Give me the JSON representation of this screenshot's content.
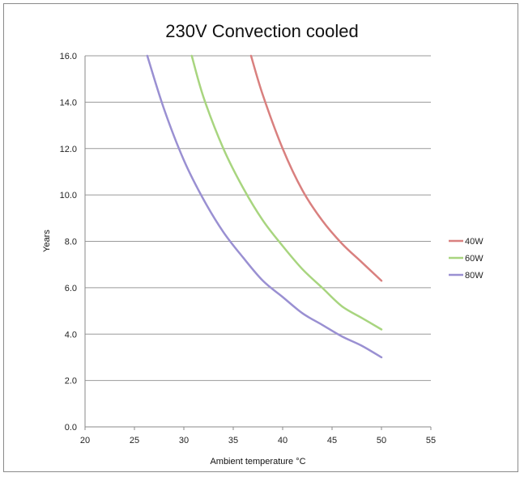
{
  "chart_data": {
    "type": "line",
    "title": "230V Convection cooled",
    "xlabel": "Ambient temperature °C",
    "ylabel": "Years",
    "xlim": [
      20,
      55
    ],
    "ylim": [
      0,
      16
    ],
    "x_ticks": [
      "20",
      "25",
      "30",
      "35",
      "40",
      "45",
      "50",
      "55"
    ],
    "y_ticks": [
      "0.0",
      "2.0",
      "4.0",
      "6.0",
      "8.0",
      "10.0",
      "12.0",
      "14.0",
      "16.0"
    ],
    "grid": "horizontal",
    "legend_position": "right",
    "series": [
      {
        "name": "40W",
        "color": "#d9807f",
        "x": [
          36.8,
          38,
          40,
          42,
          44,
          46,
          48,
          50
        ],
        "y": [
          16.0,
          14.3,
          12.0,
          10.2,
          8.9,
          7.9,
          7.1,
          6.3
        ]
      },
      {
        "name": "60W",
        "color": "#a8d57f",
        "x": [
          30.8,
          32,
          34,
          36,
          38,
          40,
          42,
          44,
          46,
          48,
          50
        ],
        "y": [
          16.0,
          14.2,
          12.0,
          10.3,
          8.9,
          7.8,
          6.8,
          6.0,
          5.2,
          4.7,
          4.2
        ]
      },
      {
        "name": "80W",
        "color": "#9a90d2",
        "x": [
          26.3,
          28,
          30,
          32,
          34,
          36,
          38,
          40,
          42,
          44,
          46,
          48,
          50
        ],
        "y": [
          16.0,
          13.7,
          11.5,
          9.8,
          8.4,
          7.3,
          6.3,
          5.6,
          4.9,
          4.4,
          3.9,
          3.5,
          3.0
        ]
      }
    ]
  }
}
